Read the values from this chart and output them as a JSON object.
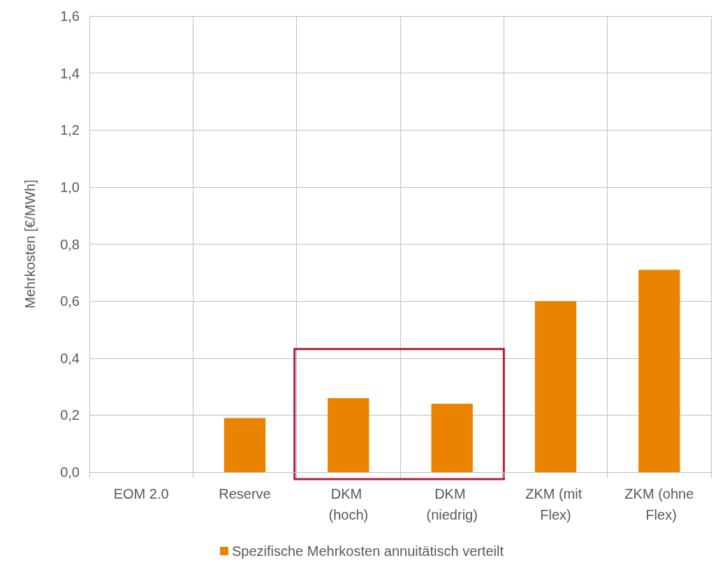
{
  "chart_data": {
    "type": "bar",
    "ylabel": "Mehrkosten [€/MWh]",
    "categories": [
      "EOM 2.0",
      "Reserve",
      "DKM (hoch)",
      "DKM (niedrig)",
      "ZKM (mit Flex)",
      "ZKM (ohne Flex)"
    ],
    "series": [
      {
        "name": "Spezifische Mehrkosten annuitätisch verteilt",
        "color": "#e98300",
        "values": [
          0,
          0.19,
          0.26,
          0.24,
          0.6,
          0.71
        ]
      }
    ],
    "ylim": [
      0,
      1.6
    ],
    "yticks": [
      {
        "value": 0,
        "label": "0,0"
      },
      {
        "value": 0.2,
        "label": "0,2"
      },
      {
        "value": 0.4,
        "label": "0,4"
      },
      {
        "value": 0.6,
        "label": "0,6"
      },
      {
        "value": 0.8,
        "label": "0,8"
      },
      {
        "value": 1,
        "label": "1,0"
      },
      {
        "value": 1.2,
        "label": "1,2"
      },
      {
        "value": 1.4,
        "label": "1,4"
      },
      {
        "value": 1.6,
        "label": "1,6"
      }
    ],
    "grid": true,
    "legend": "bottom"
  }
}
